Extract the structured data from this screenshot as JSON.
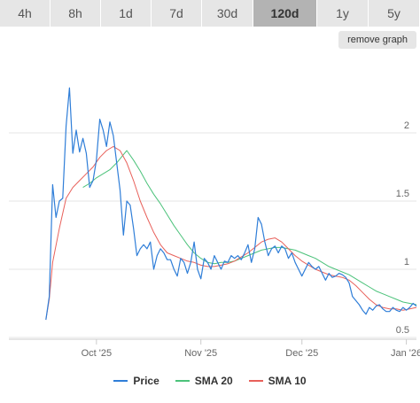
{
  "tabs": [
    {
      "label": "4h",
      "active": false
    },
    {
      "label": "8h",
      "active": false
    },
    {
      "label": "1d",
      "active": false
    },
    {
      "label": "7d",
      "active": false
    },
    {
      "label": "30d",
      "active": false
    },
    {
      "label": "120d",
      "active": true
    },
    {
      "label": "1y",
      "active": false
    },
    {
      "label": "5y",
      "active": false
    }
  ],
  "remove_graph_label": "remove graph",
  "colors": {
    "price": "#2f7ed8",
    "sma20": "#4bc27a",
    "sma10": "#e8605a",
    "grid": "#e6e6e6",
    "axis_text": "#666666"
  },
  "chart_data": {
    "type": "line",
    "xlabel": "",
    "ylabel": "",
    "ylim": [
      0.5,
      2.5
    ],
    "yticks": [
      0.5,
      1,
      1.5,
      2
    ],
    "ytick_labels": [
      "0.5",
      "1",
      "1.5",
      "2"
    ],
    "xticks": [
      {
        "x": "2025-10-01",
        "label": "Oct '25"
      },
      {
        "x": "2025-11-01",
        "label": "Nov '25"
      },
      {
        "x": "2025-12-01",
        "label": "Dec '25"
      },
      {
        "x": "2026-01-01",
        "label": "Jan '26"
      }
    ],
    "xlim": [
      "2025-09-05",
      "2026-01-04"
    ],
    "series": [
      {
        "name": "Price",
        "points": [
          [
            "2025-09-16",
            0.63
          ],
          [
            "2025-09-17",
            0.8
          ],
          [
            "2025-09-18",
            1.62
          ],
          [
            "2025-09-19",
            1.38
          ],
          [
            "2025-09-20",
            1.5
          ],
          [
            "2025-09-21",
            1.52
          ],
          [
            "2025-09-22",
            2.05
          ],
          [
            "2025-09-23",
            2.33
          ],
          [
            "2025-09-24",
            1.85
          ],
          [
            "2025-09-25",
            2.02
          ],
          [
            "2025-09-26",
            1.86
          ],
          [
            "2025-09-27",
            1.96
          ],
          [
            "2025-09-28",
            1.85
          ],
          [
            "2025-09-29",
            1.6
          ],
          [
            "2025-09-30",
            1.65
          ],
          [
            "2025-10-01",
            1.8
          ],
          [
            "2025-10-02",
            2.1
          ],
          [
            "2025-10-03",
            2.02
          ],
          [
            "2025-10-04",
            1.9
          ],
          [
            "2025-10-05",
            2.08
          ],
          [
            "2025-10-06",
            1.98
          ],
          [
            "2025-10-07",
            1.78
          ],
          [
            "2025-10-08",
            1.58
          ],
          [
            "2025-10-09",
            1.25
          ],
          [
            "2025-10-10",
            1.5
          ],
          [
            "2025-10-11",
            1.47
          ],
          [
            "2025-10-12",
            1.3
          ],
          [
            "2025-10-13",
            1.1
          ],
          [
            "2025-10-14",
            1.15
          ],
          [
            "2025-10-15",
            1.18
          ],
          [
            "2025-10-16",
            1.15
          ],
          [
            "2025-10-17",
            1.2
          ],
          [
            "2025-10-18",
            1.0
          ],
          [
            "2025-10-19",
            1.1
          ],
          [
            "2025-10-20",
            1.15
          ],
          [
            "2025-10-21",
            1.12
          ],
          [
            "2025-10-22",
            1.07
          ],
          [
            "2025-10-23",
            1.07
          ],
          [
            "2025-10-24",
            1.0
          ],
          [
            "2025-10-25",
            0.95
          ],
          [
            "2025-10-26",
            1.08
          ],
          [
            "2025-10-27",
            1.05
          ],
          [
            "2025-10-28",
            0.97
          ],
          [
            "2025-10-29",
            1.05
          ],
          [
            "2025-10-30",
            1.2
          ],
          [
            "2025-10-31",
            1.0
          ],
          [
            "2025-11-01",
            0.93
          ],
          [
            "2025-11-02",
            1.08
          ],
          [
            "2025-11-03",
            1.05
          ],
          [
            "2025-11-04",
            1.0
          ],
          [
            "2025-11-05",
            1.1
          ],
          [
            "2025-11-06",
            1.05
          ],
          [
            "2025-11-07",
            1.0
          ],
          [
            "2025-11-08",
            1.06
          ],
          [
            "2025-11-09",
            1.05
          ],
          [
            "2025-11-10",
            1.1
          ],
          [
            "2025-11-11",
            1.08
          ],
          [
            "2025-11-12",
            1.1
          ],
          [
            "2025-11-13",
            1.07
          ],
          [
            "2025-11-14",
            1.12
          ],
          [
            "2025-11-15",
            1.18
          ],
          [
            "2025-11-16",
            1.05
          ],
          [
            "2025-11-17",
            1.15
          ],
          [
            "2025-11-18",
            1.38
          ],
          [
            "2025-11-19",
            1.33
          ],
          [
            "2025-11-20",
            1.2
          ],
          [
            "2025-11-21",
            1.1
          ],
          [
            "2025-11-22",
            1.15
          ],
          [
            "2025-11-23",
            1.17
          ],
          [
            "2025-11-24",
            1.12
          ],
          [
            "2025-11-25",
            1.17
          ],
          [
            "2025-11-26",
            1.15
          ],
          [
            "2025-11-27",
            1.08
          ],
          [
            "2025-11-28",
            1.12
          ],
          [
            "2025-11-29",
            1.05
          ],
          [
            "2025-11-30",
            1.0
          ],
          [
            "2025-12-01",
            0.95
          ],
          [
            "2025-12-02",
            1.0
          ],
          [
            "2025-12-03",
            1.05
          ],
          [
            "2025-12-04",
            1.02
          ],
          [
            "2025-12-05",
            1.0
          ],
          [
            "2025-12-06",
            1.02
          ],
          [
            "2025-12-07",
            0.97
          ],
          [
            "2025-12-08",
            0.92
          ],
          [
            "2025-12-09",
            0.97
          ],
          [
            "2025-12-10",
            0.94
          ],
          [
            "2025-12-11",
            0.95
          ],
          [
            "2025-12-12",
            0.97
          ],
          [
            "2025-12-13",
            0.96
          ],
          [
            "2025-12-14",
            0.94
          ],
          [
            "2025-12-15",
            0.9
          ],
          [
            "2025-12-16",
            0.8
          ],
          [
            "2025-12-17",
            0.77
          ],
          [
            "2025-12-18",
            0.74
          ],
          [
            "2025-12-19",
            0.7
          ],
          [
            "2025-12-20",
            0.67
          ],
          [
            "2025-12-21",
            0.72
          ],
          [
            "2025-12-22",
            0.7
          ],
          [
            "2025-12-23",
            0.73
          ],
          [
            "2025-12-24",
            0.74
          ],
          [
            "2025-12-25",
            0.71
          ],
          [
            "2025-12-26",
            0.69
          ],
          [
            "2025-12-27",
            0.69
          ],
          [
            "2025-12-28",
            0.72
          ],
          [
            "2025-12-29",
            0.7
          ],
          [
            "2025-12-30",
            0.69
          ],
          [
            "2025-12-31",
            0.72
          ],
          [
            "2026-01-01",
            0.7
          ],
          [
            "2026-01-02",
            0.72
          ],
          [
            "2026-01-03",
            0.75
          ],
          [
            "2026-01-04",
            0.73
          ]
        ]
      },
      {
        "name": "SMA 20",
        "points": [
          [
            "2025-09-27",
            1.6
          ],
          [
            "2025-09-29",
            1.63
          ],
          [
            "2025-10-01",
            1.67
          ],
          [
            "2025-10-03",
            1.7
          ],
          [
            "2025-10-05",
            1.73
          ],
          [
            "2025-10-07",
            1.78
          ],
          [
            "2025-10-09",
            1.84
          ],
          [
            "2025-10-10",
            1.87
          ],
          [
            "2025-10-12",
            1.8
          ],
          [
            "2025-10-14",
            1.72
          ],
          [
            "2025-10-16",
            1.63
          ],
          [
            "2025-10-18",
            1.55
          ],
          [
            "2025-10-20",
            1.48
          ],
          [
            "2025-10-22",
            1.4
          ],
          [
            "2025-10-24",
            1.32
          ],
          [
            "2025-10-26",
            1.25
          ],
          [
            "2025-10-28",
            1.18
          ],
          [
            "2025-10-30",
            1.12
          ],
          [
            "2025-11-01",
            1.08
          ],
          [
            "2025-11-03",
            1.05
          ],
          [
            "2025-11-05",
            1.04
          ],
          [
            "2025-11-07",
            1.05
          ],
          [
            "2025-11-09",
            1.05
          ],
          [
            "2025-11-11",
            1.06
          ],
          [
            "2025-11-13",
            1.08
          ],
          [
            "2025-11-15",
            1.1
          ],
          [
            "2025-11-17",
            1.12
          ],
          [
            "2025-11-19",
            1.14
          ],
          [
            "2025-11-21",
            1.15
          ],
          [
            "2025-11-23",
            1.16
          ],
          [
            "2025-11-25",
            1.16
          ],
          [
            "2025-11-27",
            1.15
          ],
          [
            "2025-11-29",
            1.14
          ],
          [
            "2025-12-01",
            1.12
          ],
          [
            "2025-12-03",
            1.1
          ],
          [
            "2025-12-05",
            1.08
          ],
          [
            "2025-12-07",
            1.05
          ],
          [
            "2025-12-09",
            1.02
          ],
          [
            "2025-12-11",
            1.0
          ],
          [
            "2025-12-13",
            0.98
          ],
          [
            "2025-12-15",
            0.96
          ],
          [
            "2025-12-17",
            0.93
          ],
          [
            "2025-12-19",
            0.9
          ],
          [
            "2025-12-21",
            0.87
          ],
          [
            "2025-12-23",
            0.84
          ],
          [
            "2025-12-25",
            0.82
          ],
          [
            "2025-12-27",
            0.8
          ],
          [
            "2025-12-29",
            0.78
          ],
          [
            "2025-12-31",
            0.76
          ],
          [
            "2026-01-02",
            0.75
          ],
          [
            "2026-01-04",
            0.74
          ]
        ]
      },
      {
        "name": "SMA 10",
        "points": [
          [
            "2025-09-16",
            0.63
          ],
          [
            "2025-09-17",
            0.78
          ],
          [
            "2025-09-18",
            1.05
          ],
          [
            "2025-09-20",
            1.3
          ],
          [
            "2025-09-22",
            1.52
          ],
          [
            "2025-09-24",
            1.6
          ],
          [
            "2025-09-26",
            1.65
          ],
          [
            "2025-09-28",
            1.7
          ],
          [
            "2025-09-30",
            1.75
          ],
          [
            "2025-10-02",
            1.82
          ],
          [
            "2025-10-04",
            1.87
          ],
          [
            "2025-10-06",
            1.9
          ],
          [
            "2025-10-08",
            1.87
          ],
          [
            "2025-10-10",
            1.78
          ],
          [
            "2025-10-12",
            1.65
          ],
          [
            "2025-10-14",
            1.5
          ],
          [
            "2025-10-16",
            1.38
          ],
          [
            "2025-10-18",
            1.27
          ],
          [
            "2025-10-20",
            1.18
          ],
          [
            "2025-10-22",
            1.12
          ],
          [
            "2025-10-24",
            1.1
          ],
          [
            "2025-10-26",
            1.08
          ],
          [
            "2025-10-28",
            1.06
          ],
          [
            "2025-10-30",
            1.05
          ],
          [
            "2025-11-01",
            1.03
          ],
          [
            "2025-11-03",
            1.02
          ],
          [
            "2025-11-05",
            1.02
          ],
          [
            "2025-11-07",
            1.03
          ],
          [
            "2025-11-09",
            1.04
          ],
          [
            "2025-11-11",
            1.06
          ],
          [
            "2025-11-13",
            1.09
          ],
          [
            "2025-11-15",
            1.12
          ],
          [
            "2025-11-17",
            1.16
          ],
          [
            "2025-11-19",
            1.2
          ],
          [
            "2025-11-21",
            1.22
          ],
          [
            "2025-11-23",
            1.23
          ],
          [
            "2025-11-25",
            1.2
          ],
          [
            "2025-11-27",
            1.15
          ],
          [
            "2025-11-29",
            1.1
          ],
          [
            "2025-12-01",
            1.06
          ],
          [
            "2025-12-03",
            1.03
          ],
          [
            "2025-12-05",
            1.0
          ],
          [
            "2025-12-07",
            0.98
          ],
          [
            "2025-12-09",
            0.96
          ],
          [
            "2025-12-11",
            0.95
          ],
          [
            "2025-12-13",
            0.94
          ],
          [
            "2025-12-15",
            0.92
          ],
          [
            "2025-12-17",
            0.88
          ],
          [
            "2025-12-19",
            0.83
          ],
          [
            "2025-12-21",
            0.78
          ],
          [
            "2025-12-23",
            0.74
          ],
          [
            "2025-12-25",
            0.72
          ],
          [
            "2025-12-27",
            0.71
          ],
          [
            "2025-12-29",
            0.71
          ],
          [
            "2025-12-31",
            0.7
          ],
          [
            "2026-01-02",
            0.71
          ],
          [
            "2026-01-04",
            0.72
          ]
        ]
      }
    ],
    "legend_position": "bottom"
  }
}
